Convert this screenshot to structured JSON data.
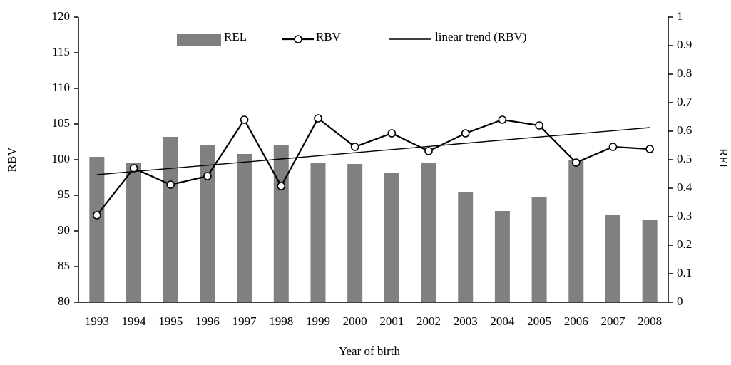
{
  "chart_data": {
    "type": "bar_line",
    "categories": [
      "1993",
      "1994",
      "1995",
      "1996",
      "1997",
      "1998",
      "1999",
      "2000",
      "2001",
      "2002",
      "2003",
      "2004",
      "2005",
      "2006",
      "2007",
      "2008"
    ],
    "series": [
      {
        "name": "REL",
        "type": "bar",
        "axis": "y2",
        "color": "#808080",
        "values": [
          0.51,
          0.49,
          0.58,
          0.55,
          0.52,
          0.55,
          0.49,
          0.485,
          0.455,
          0.49,
          0.385,
          0.32,
          0.37,
          0.5,
          0.305,
          0.29
        ]
      },
      {
        "name": "RBV",
        "type": "line",
        "axis": "y",
        "color": "#000000",
        "marker": "circle",
        "values": [
          92.2,
          98.8,
          96.5,
          97.7,
          105.6,
          96.3,
          105.8,
          101.8,
          103.7,
          101.2,
          103.7,
          105.6,
          104.8,
          99.6,
          101.8,
          101.5
        ]
      },
      {
        "name": "linear trend (RBV)",
        "type": "line",
        "axis": "y",
        "color": "#000000",
        "values": [
          97.9,
          98.34,
          98.78,
          99.22,
          99.66,
          100.1,
          100.54,
          100.98,
          101.42,
          101.86,
          102.3,
          102.74,
          103.18,
          103.62,
          104.06,
          104.5
        ]
      }
    ],
    "xlabel": "Year of birth",
    "ylabel": "RBV",
    "y2label": "REL",
    "ylim": [
      80,
      120
    ],
    "yticks": [
      80,
      85,
      90,
      95,
      100,
      105,
      110,
      115,
      120
    ],
    "y2lim": [
      0,
      1
    ],
    "y2ticks": [
      0,
      0.1,
      0.2,
      0.3,
      0.4,
      0.5,
      0.6,
      0.7,
      0.8,
      0.9,
      1
    ],
    "legend": "top"
  }
}
